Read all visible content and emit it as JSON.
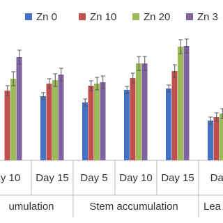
{
  "chart_data": {
    "type": "bar",
    "categories": [
      "y 10",
      "Day 15",
      "Day 5",
      "Day 10",
      "Day 15",
      "Day"
    ],
    "group_labels": [
      "umulation",
      "Stem accumulation",
      "Lea"
    ],
    "series": [
      {
        "name": "Zn 0",
        "color": "#4472c4",
        "values": [
          null,
          92,
          83,
          101,
          103,
          57
        ],
        "errors": [
          null,
          5,
          5,
          5,
          5,
          5
        ]
      },
      {
        "name": "Zn 10",
        "color": "#c0504d",
        "values": [
          100,
          110,
          107,
          118,
          128,
          62
        ],
        "errors": [
          7,
          7,
          7,
          7,
          9,
          6
        ]
      },
      {
        "name": "Zn 20",
        "color": "#9bbb59",
        "values": [
          117,
          115,
          110,
          139,
          163,
          67
        ],
        "errors": [
          10,
          9,
          9,
          10,
          10,
          7
        ]
      },
      {
        "name": "Zn 3",
        "color": "#8064a2",
        "values": [
          148,
          123,
          112,
          139,
          164,
          null
        ],
        "errors": [
          10,
          9,
          9,
          10,
          10,
          null
        ]
      }
    ],
    "ylim": [
      0,
      200
    ]
  }
}
